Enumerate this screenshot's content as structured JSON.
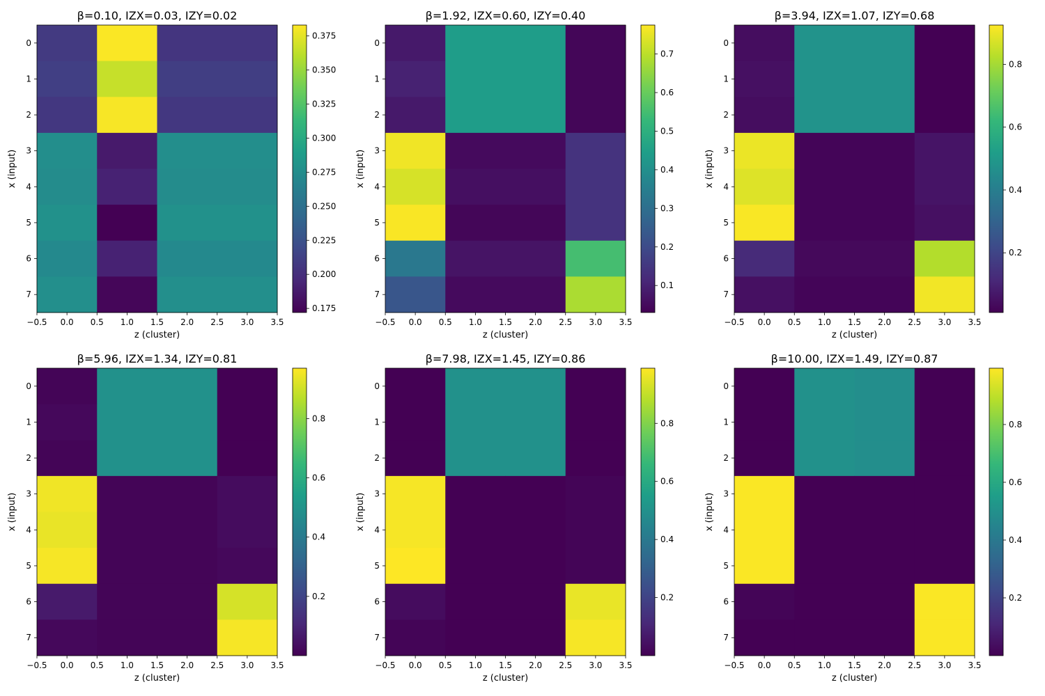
{
  "chart_data": [
    {
      "type": "heatmap",
      "title": "β=0.10, IZX=0.03, IZY=0.02",
      "xlabel": "z (cluster)",
      "ylabel": "x (input)",
      "xticks": [
        "−0.5",
        "0.0",
        "0.5",
        "1.0",
        "1.5",
        "2.0",
        "2.5",
        "3.0",
        "3.5"
      ],
      "yticks": [
        "0",
        "1",
        "2",
        "3",
        "4",
        "5",
        "6",
        "7"
      ],
      "colorbar": {
        "min": 0.172,
        "max": 0.383,
        "ticks": [
          "0.175",
          "0.200",
          "0.225",
          "0.250",
          "0.275",
          "0.300",
          "0.325",
          "0.350",
          "0.375"
        ]
      },
      "matrix": [
        [
          0.208,
          0.382,
          0.205,
          0.205
        ],
        [
          0.212,
          0.365,
          0.211,
          0.211
        ],
        [
          0.206,
          0.381,
          0.206,
          0.206
        ],
        [
          0.276,
          0.187,
          0.276,
          0.276
        ],
        [
          0.274,
          0.192,
          0.274,
          0.274
        ],
        [
          0.278,
          0.172,
          0.278,
          0.278
        ],
        [
          0.272,
          0.192,
          0.272,
          0.272
        ],
        [
          0.277,
          0.175,
          0.277,
          0.277
        ]
      ]
    },
    {
      "type": "heatmap",
      "title": "β=1.92, IZX=0.60, IZY=0.40",
      "xlabel": "z (cluster)",
      "ylabel": "x (input)",
      "xticks": [
        "−0.5",
        "0.0",
        "0.5",
        "1.0",
        "1.5",
        "2.0",
        "2.5",
        "3.0",
        "3.5"
      ],
      "yticks": [
        "0",
        "1",
        "2",
        "3",
        "4",
        "5",
        "6",
        "7"
      ],
      "colorbar": {
        "min": 0.03,
        "max": 0.775,
        "ticks": [
          "0.1",
          "0.2",
          "0.3",
          "0.4",
          "0.5",
          "0.6",
          "0.7"
        ]
      },
      "matrix": [
        [
          0.08,
          0.44,
          0.44,
          0.04
        ],
        [
          0.1,
          0.44,
          0.44,
          0.04
        ],
        [
          0.08,
          0.44,
          0.44,
          0.04
        ],
        [
          0.76,
          0.05,
          0.05,
          0.14
        ],
        [
          0.73,
          0.06,
          0.06,
          0.14
        ],
        [
          0.77,
          0.04,
          0.04,
          0.14
        ],
        [
          0.33,
          0.07,
          0.07,
          0.55
        ],
        [
          0.23,
          0.05,
          0.05,
          0.68
        ]
      ]
    },
    {
      "type": "heatmap",
      "title": "β=3.94, IZX=1.07, IZY=0.68",
      "xlabel": "z (cluster)",
      "ylabel": "x (input)",
      "xticks": [
        "−0.5",
        "0.0",
        "0.5",
        "1.0",
        "1.5",
        "2.0",
        "2.5",
        "3.0",
        "3.5"
      ],
      "yticks": [
        "0",
        "1",
        "2",
        "3",
        "4",
        "5",
        "6",
        "7"
      ],
      "colorbar": {
        "min": 0.01,
        "max": 0.925,
        "ticks": [
          "0.2",
          "0.4",
          "0.6",
          "0.8"
        ]
      },
      "matrix": [
        [
          0.04,
          0.48,
          0.48,
          0.01
        ],
        [
          0.05,
          0.48,
          0.48,
          0.01
        ],
        [
          0.04,
          0.48,
          0.48,
          0.01
        ],
        [
          0.9,
          0.02,
          0.02,
          0.06
        ],
        [
          0.88,
          0.02,
          0.02,
          0.06
        ],
        [
          0.92,
          0.02,
          0.02,
          0.05
        ],
        [
          0.12,
          0.03,
          0.03,
          0.82
        ],
        [
          0.05,
          0.02,
          0.02,
          0.91
        ]
      ]
    },
    {
      "type": "heatmap",
      "title": "β=5.96, IZX=1.34, IZY=0.81",
      "xlabel": "z (cluster)",
      "ylabel": "x (input)",
      "xticks": [
        "−0.5",
        "0.0",
        "0.5",
        "1.0",
        "1.5",
        "2.0",
        "2.5",
        "3.0",
        "3.5"
      ],
      "yticks": [
        "0",
        "1",
        "2",
        "3",
        "4",
        "5",
        "6",
        "7"
      ],
      "colorbar": {
        "min": 0.0,
        "max": 0.97,
        "ticks": [
          "0.2",
          "0.4",
          "0.6",
          "0.8"
        ]
      },
      "matrix": [
        [
          0.01,
          0.49,
          0.49,
          0.0
        ],
        [
          0.02,
          0.49,
          0.49,
          0.0
        ],
        [
          0.01,
          0.49,
          0.49,
          0.0
        ],
        [
          0.95,
          0.01,
          0.01,
          0.03
        ],
        [
          0.94,
          0.01,
          0.01,
          0.03
        ],
        [
          0.96,
          0.01,
          0.01,
          0.02
        ],
        [
          0.07,
          0.01,
          0.01,
          0.91
        ],
        [
          0.02,
          0.01,
          0.01,
          0.96
        ]
      ]
    },
    {
      "type": "heatmap",
      "title": "β=7.98, IZX=1.45, IZY=0.86",
      "xlabel": "z (cluster)",
      "ylabel": "x (input)",
      "xticks": [
        "−0.5",
        "0.0",
        "0.5",
        "1.0",
        "1.5",
        "2.0",
        "2.5",
        "3.0",
        "3.5"
      ],
      "yticks": [
        "0",
        "1",
        "2",
        "3",
        "4",
        "5",
        "6",
        "7"
      ],
      "colorbar": {
        "min": 0.0,
        "max": 0.99,
        "ticks": [
          "0.2",
          "0.4",
          "0.6",
          "0.8"
        ]
      },
      "matrix": [
        [
          0.0,
          0.5,
          0.5,
          0.0
        ],
        [
          0.0,
          0.5,
          0.5,
          0.0
        ],
        [
          0.0,
          0.5,
          0.5,
          0.0
        ],
        [
          0.98,
          0.0,
          0.0,
          0.01
        ],
        [
          0.98,
          0.0,
          0.0,
          0.01
        ],
        [
          0.99,
          0.0,
          0.0,
          0.01
        ],
        [
          0.03,
          0.0,
          0.0,
          0.96
        ],
        [
          0.01,
          0.0,
          0.0,
          0.98
        ]
      ]
    },
    {
      "type": "heatmap",
      "title": "β=10.00, IZX=1.49, IZY=0.87",
      "xlabel": "z (cluster)",
      "ylabel": "x (input)",
      "xticks": [
        "−0.5",
        "0.0",
        "0.5",
        "1.0",
        "1.5",
        "2.0",
        "2.5",
        "3.0",
        "3.5"
      ],
      "yticks": [
        "0",
        "1",
        "2",
        "3",
        "4",
        "5",
        "6",
        "7"
      ],
      "colorbar": {
        "min": 0.0,
        "max": 0.995,
        "ticks": [
          "0.2",
          "0.4",
          "0.6",
          "0.8"
        ]
      },
      "matrix": [
        [
          0.0,
          0.5,
          0.49,
          0.0
        ],
        [
          0.0,
          0.5,
          0.49,
          0.0
        ],
        [
          0.0,
          0.5,
          0.49,
          0.0
        ],
        [
          0.99,
          0.0,
          0.0,
          0.0
        ],
        [
          0.99,
          0.0,
          0.0,
          0.0
        ],
        [
          0.99,
          0.0,
          0.0,
          0.0
        ],
        [
          0.01,
          0.0,
          0.0,
          0.99
        ],
        [
          0.0,
          0.0,
          0.0,
          0.99
        ]
      ]
    }
  ]
}
